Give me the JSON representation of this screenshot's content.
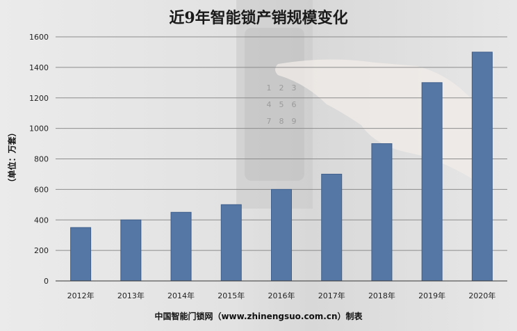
{
  "chart_data": {
    "type": "bar",
    "title": "近9年智能锁产销规模变化",
    "ylabel": "（单位：万套）",
    "xlabel": "",
    "categories": [
      "2012年",
      "2013年",
      "2014年",
      "2015年",
      "2016年",
      "2017年",
      "2018年",
      "2019年",
      "2020年"
    ],
    "values": [
      350,
      400,
      450,
      500,
      600,
      700,
      900,
      1300,
      1500
    ],
    "ylim": [
      0,
      1600
    ],
    "yticks": [
      "0",
      "200",
      "400",
      "600",
      "800",
      "1000",
      "1200",
      "1400",
      "1600"
    ],
    "grid": true,
    "bar_color": "#5577a6"
  },
  "source_note": "中国智能门锁网（www.zhinengsuo.com.cn）制表",
  "keypad_keys": [
    "1",
    "2",
    "3",
    "4",
    "5",
    "6",
    "7",
    "8",
    "9"
  ]
}
